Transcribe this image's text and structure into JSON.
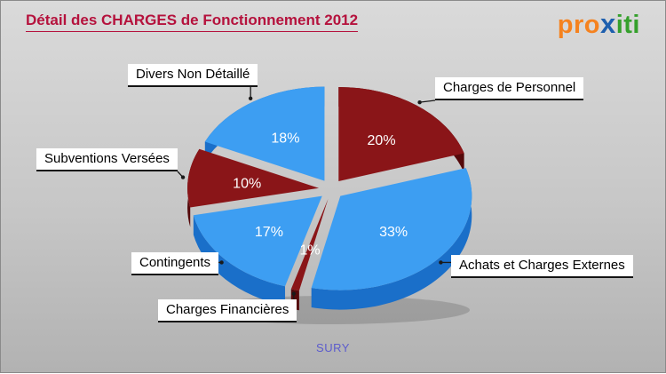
{
  "title": "Détail des CHARGES de Fonctionnement 2012",
  "logo": {
    "part1": "pro",
    "part2": "x",
    "part3": "iti",
    "colors": {
      "part1": "#f5821f",
      "part2": "#1e5fae",
      "part3": "#35a02c"
    }
  },
  "footer": "SURY",
  "colors": {
    "title": "#b5123d",
    "footer": "#5c5ccd",
    "callout": "#1a1a1a",
    "percent_text": "#ffffff",
    "pie_blue": "#3d9ef2",
    "pie_dark_red": "#8a1518"
  },
  "chart_data": {
    "type": "pie",
    "title": "Détail des CHARGES de Fonctionnement 2012",
    "unit": "percent",
    "legend": "none",
    "label_style": "callout",
    "style": "3d-exploded",
    "slices": [
      {
        "label": "Charges de Personnel",
        "value": 20,
        "pct_label": "20%",
        "color": "#8a1518",
        "side_color": "#55090b"
      },
      {
        "label": "Achats et Charges Externes",
        "value": 33,
        "pct_label": "33%",
        "color": "#3d9ef2",
        "side_color": "#1a6fc9"
      },
      {
        "label": "Charges Financières",
        "value": 1,
        "pct_label": "1%",
        "color": "#8a1518",
        "side_color": "#55090b"
      },
      {
        "label": "Contingents",
        "value": 17,
        "pct_label": "17%",
        "color": "#3d9ef2",
        "side_color": "#1a6fc9"
      },
      {
        "label": "Subventions Versées",
        "value": 10,
        "pct_label": "10%",
        "color": "#8a1518",
        "side_color": "#55090b"
      },
      {
        "label": "Divers Non Détaillé",
        "value": 18,
        "pct_label": "18%",
        "color": "#3d9ef2",
        "side_color": "#1a6fc9"
      }
    ]
  }
}
